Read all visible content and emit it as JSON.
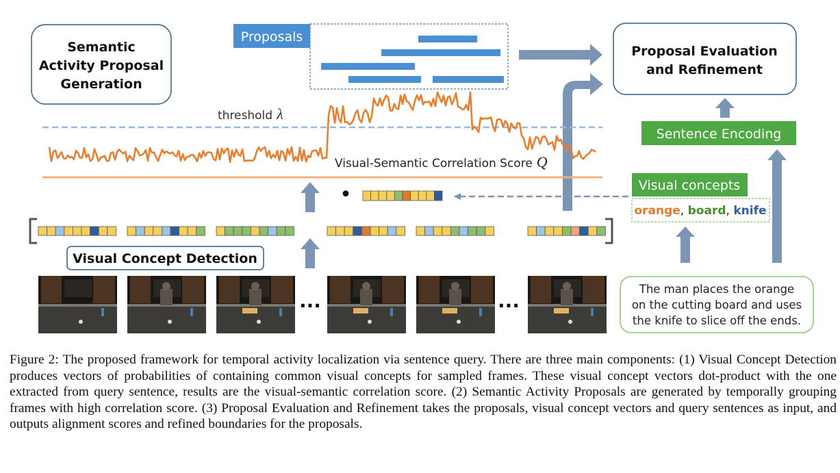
{
  "boxes": {
    "proposal_generation": [
      "Semantic",
      "Activity Proposal",
      "Generation"
    ],
    "proposal_evaluation": [
      "Proposal Evaluation",
      "and Refinement"
    ],
    "proposals_label": "Proposals",
    "sentence_encoding": "Sentence Encoding",
    "visual_concepts": "Visual concepts",
    "visual_concept_detection": "Visual Concept Detection"
  },
  "concepts": [
    {
      "word": "orange",
      "color": "#E07A2C"
    },
    {
      "word": "board",
      "color": "#4F8A33"
    },
    {
      "word": "knife",
      "color": "#2F5DA1"
    }
  ],
  "concept_separator": ", ",
  "threshold": {
    "label": "threshold",
    "symbol": "λ"
  },
  "score": {
    "label": "Visual-Semantic Correlation Score",
    "symbol": "Q"
  },
  "dot": "•",
  "ellipsis": "···",
  "query_sentence": [
    "The man places the orange",
    "on the cutting board and uses",
    "the knife to slice off the ends."
  ],
  "caption": "Figure 2: The proposed framework for temporal activity localization via sentence query. There are three main components: (1) Visual Concept Detection produces vectors of probabilities of containing common visual concepts for sampled frames. These visual concept vectors dot-product with the one extracted from query sentence, results are the visual-semantic correlation score. (2) Semantic Activity Proposals are generated by temporally grouping frames with high correlation score. (3) Proposal Evaluation and Refinement takes the proposals, visual concept vectors and query sentences as input, and outputs alignment scores and refined boundaries for the proposals.",
  "colors": {
    "blue_box": "#4A8FD4",
    "green_box": "#4EA844",
    "arrow": "#7C95B5",
    "curve": "#E87F2E",
    "threshold_line": "#9AB8DF",
    "base_line": "#F2B07E",
    "outline": "#2F5D86",
    "query_border": "#8CC470"
  }
}
